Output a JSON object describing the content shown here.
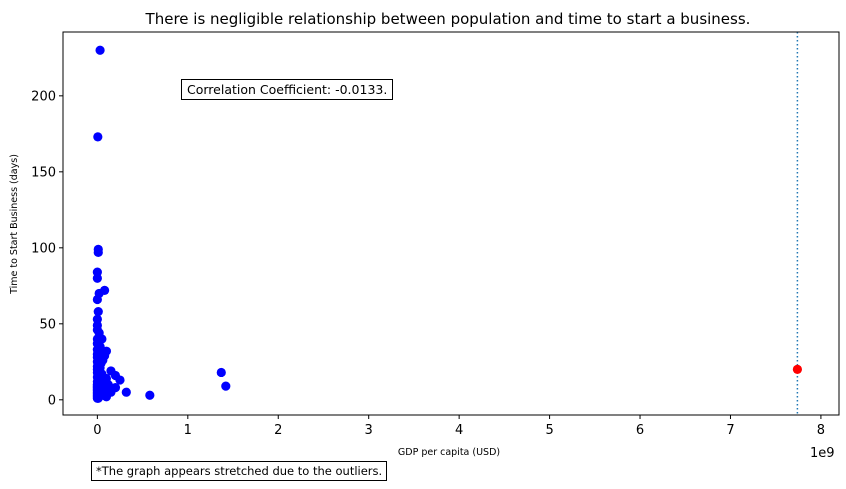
{
  "chart_data": {
    "type": "scatter",
    "title": "There is negligible relationship between population and time to start a business.",
    "xlabel": "GDP per capita (USD)",
    "ylabel": "Time to Start Business (days)",
    "x_offset_label": "1e9",
    "xlim": [
      -0.38,
      8.2
    ],
    "ylim": [
      -10,
      242
    ],
    "xticks": [
      0,
      1,
      2,
      3,
      4,
      5,
      6,
      7,
      8
    ],
    "yticks": [
      0,
      50,
      100,
      150,
      200
    ],
    "grid": false,
    "colors": {
      "points": "#0000ff",
      "highlight": "#ff0000",
      "vline": "#1f77b4"
    },
    "series": [
      {
        "color": "#0000ff",
        "points": [
          [
            0.03,
            230
          ],
          [
            0.005,
            173
          ],
          [
            0.01,
            99
          ],
          [
            0.01,
            97
          ],
          [
            0.0,
            84
          ],
          [
            0.0,
            80
          ],
          [
            0.08,
            72
          ],
          [
            0.02,
            70
          ],
          [
            0.0,
            66
          ],
          [
            0.01,
            58
          ],
          [
            0.0,
            53
          ],
          [
            0.0,
            49
          ],
          [
            0.0,
            46
          ],
          [
            0.02,
            44
          ],
          [
            0.0,
            40
          ],
          [
            0.05,
            40
          ],
          [
            0.0,
            37
          ],
          [
            0.03,
            35
          ],
          [
            0.0,
            33
          ],
          [
            0.1,
            32
          ],
          [
            0.05,
            32
          ],
          [
            0.0,
            30
          ],
          [
            0.08,
            29
          ],
          [
            0.0,
            28
          ],
          [
            0.02,
            27
          ],
          [
            0.06,
            26
          ],
          [
            0.0,
            25
          ],
          [
            0.04,
            24
          ],
          [
            0.0,
            22
          ],
          [
            0.03,
            21
          ],
          [
            0.0,
            20
          ],
          [
            0.02,
            19
          ],
          [
            0.15,
            19
          ],
          [
            0.0,
            18
          ],
          [
            0.05,
            17
          ],
          [
            0.2,
            16
          ],
          [
            0.0,
            15
          ],
          [
            0.03,
            14
          ],
          [
            0.1,
            14
          ],
          [
            0.25,
            13
          ],
          [
            0.0,
            12
          ],
          [
            0.02,
            12
          ],
          [
            0.06,
            11
          ],
          [
            0.0,
            10
          ],
          [
            0.03,
            10
          ],
          [
            0.12,
            10
          ],
          [
            0.0,
            9
          ],
          [
            0.02,
            9
          ],
          [
            0.0,
            8
          ],
          [
            0.04,
            8
          ],
          [
            0.2,
            8
          ],
          [
            0.0,
            7
          ],
          [
            0.02,
            7
          ],
          [
            0.08,
            7
          ],
          [
            0.0,
            6
          ],
          [
            0.03,
            6
          ],
          [
            0.0,
            5
          ],
          [
            0.05,
            5
          ],
          [
            0.15,
            5
          ],
          [
            0.0,
            4
          ],
          [
            0.02,
            4
          ],
          [
            0.32,
            5
          ],
          [
            0.0,
            3
          ],
          [
            0.04,
            3
          ],
          [
            0.0,
            2
          ],
          [
            0.02,
            2
          ],
          [
            0.0,
            1
          ],
          [
            0.01,
            1
          ],
          [
            0.07,
            3
          ],
          [
            0.1,
            2
          ],
          [
            0.58,
            3
          ],
          [
            1.37,
            18
          ],
          [
            1.42,
            9
          ]
        ]
      },
      {
        "color": "#ff0000",
        "points": [
          [
            7.74,
            20
          ]
        ]
      }
    ],
    "vline": {
      "x": 7.74,
      "style": "dotted"
    }
  },
  "annotations": {
    "correlation": "Correlation Coefficient: -0.0133.",
    "footnote": "*The graph appears stretched due to the outliers."
  }
}
